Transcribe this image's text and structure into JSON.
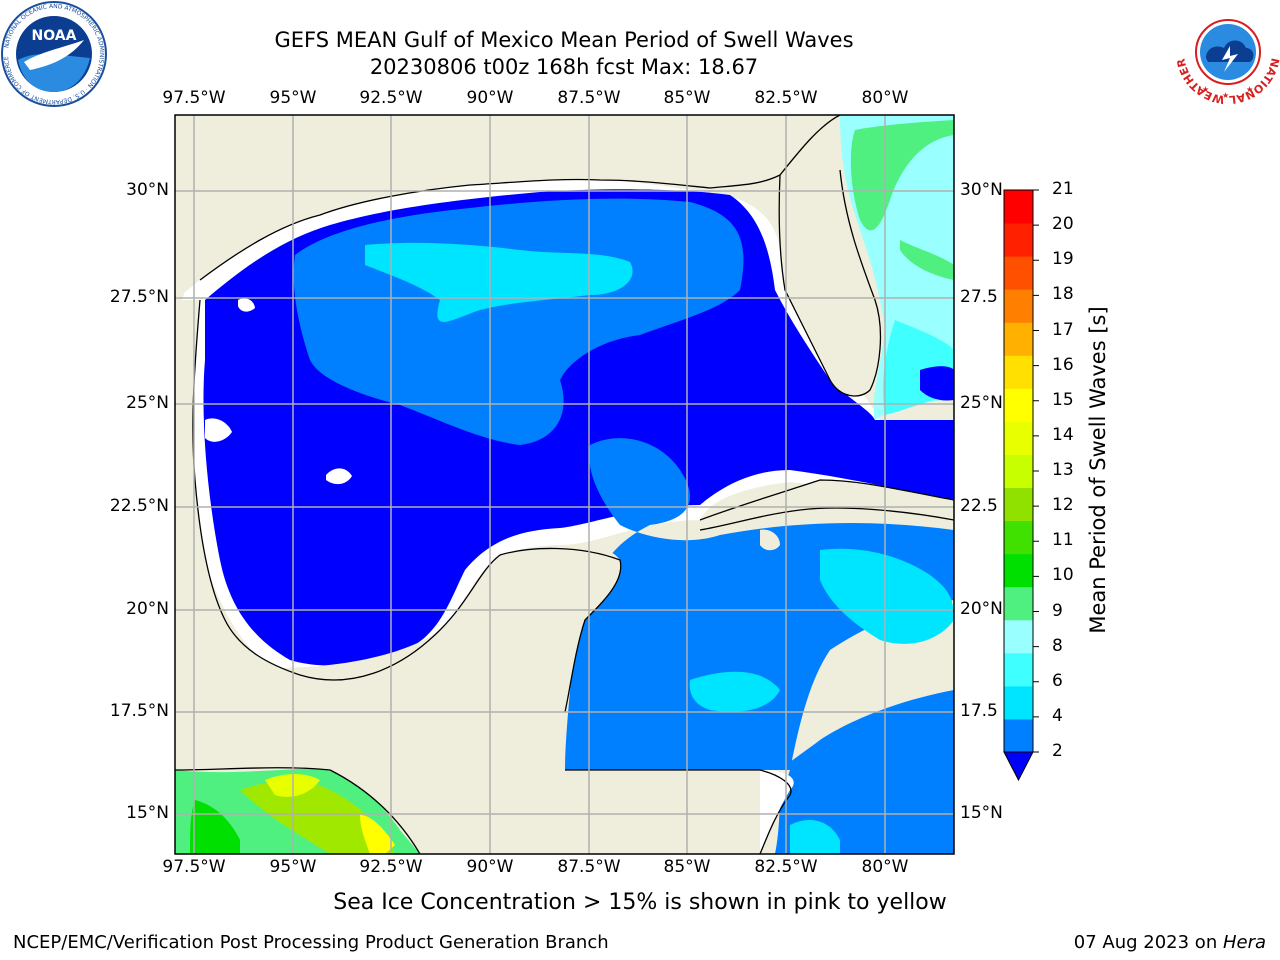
{
  "header": {
    "title_line1": "GEFS MEAN Gulf of Mexico Mean Period of Swell Waves",
    "title_line2": "20230806 t00z 168h fcst   Max: 18.67"
  },
  "logos": {
    "left": {
      "text": "NOAA",
      "ring_text": "NATIONAL OCEANIC AND ATMOSPHERIC ADMINISTRATION · U.S. DEPARTMENT OF COMMERCE"
    },
    "right": {
      "ring_text": "NATIONAL WEATHER SERVICE"
    }
  },
  "map": {
    "lon_ticks_top": [
      "97.5°W",
      "95°W",
      "92.5°W",
      "90°W",
      "87.5°W",
      "85°W",
      "82.5°W",
      "80°W"
    ],
    "lon_ticks_bottom": [
      "97.5°W",
      "95°W",
      "92.5°W",
      "90°W",
      "87.5°W",
      "85°W",
      "82.5°W",
      "80°W"
    ],
    "lat_ticks_left": [
      "30°N",
      "27.5°N",
      "25°N",
      "22.5°N",
      "20°N",
      "17.5°N",
      "15°N"
    ],
    "lat_ticks_right": [
      "30°N",
      "27.5",
      "25°N",
      "22.5",
      "20°N",
      "17.5",
      "15°N"
    ],
    "colors": {
      "land": "#efeedc",
      "no_data": "#ffffff",
      "grid": "#b0b0b0"
    }
  },
  "colorbar": {
    "label": "Mean Period of Swell Waves [s]",
    "ticks": [
      "21",
      "20",
      "19",
      "18",
      "17",
      "16",
      "15",
      "14",
      "13",
      "12",
      "11",
      "10",
      "9",
      "8",
      "6",
      "4",
      "2"
    ],
    "colors": [
      "#0000ff",
      "#0080ff",
      "#00e5ff",
      "#40ffff",
      "#99ffff",
      "#50f080",
      "#00e000",
      "#40e000",
      "#90e000",
      "#c8ff00",
      "#e8ff00",
      "#ffff00",
      "#ffe000",
      "#ffb000",
      "#ff8000",
      "#ff5000",
      "#ff2000",
      "#ff0000"
    ]
  },
  "footer": {
    "note": "Sea Ice Concentration > 15% is shown in pink to yellow",
    "credit": "NCEP/EMC/Verification Post Processing Product Generation Branch",
    "date": "07 Aug 2023 on ",
    "host": "Hera"
  }
}
